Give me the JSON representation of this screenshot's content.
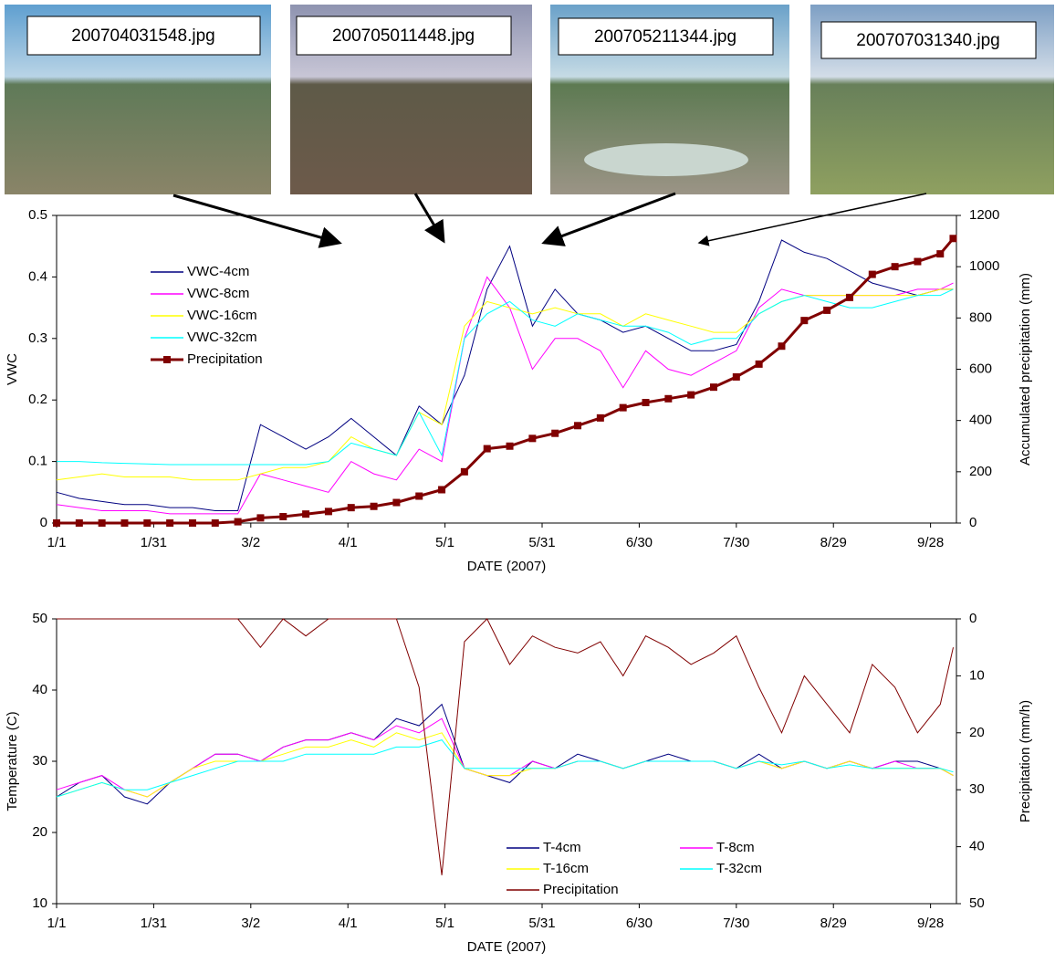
{
  "photos": [
    "200704031548.jpg",
    "200705011448.jpg",
    "200705211344.jpg",
    "200707031340.jpg"
  ],
  "chart_data": [
    {
      "type": "line",
      "ylabel": "VWC",
      "y2label": "Accumulated precipitation (mm)",
      "xlabel": "DATE (2007)",
      "x": [
        "1/1",
        "1/8",
        "1/15",
        "1/22",
        "1/29",
        "2/5",
        "2/12",
        "2/19",
        "2/26",
        "3/5",
        "3/12",
        "3/19",
        "3/26",
        "4/2",
        "4/9",
        "4/16",
        "4/23",
        "4/30",
        "5/7",
        "5/14",
        "5/21",
        "5/28",
        "6/4",
        "6/11",
        "6/18",
        "6/25",
        "7/2",
        "7/9",
        "7/16",
        "7/23",
        "7/30",
        "8/6",
        "8/13",
        "8/20",
        "8/27",
        "9/3",
        "9/10",
        "9/17",
        "9/24",
        "10/1",
        "10/5"
      ],
      "xlim": [
        "1/1",
        "10/6"
      ],
      "xticks": [
        "1/1",
        "1/31",
        "3/2",
        "4/1",
        "5/1",
        "5/31",
        "6/30",
        "7/30",
        "8/29",
        "9/28"
      ],
      "ylim": [
        0,
        0.5
      ],
      "yticks": [
        0,
        0.1,
        0.2,
        0.3,
        0.4,
        0.5
      ],
      "y2lim": [
        0,
        1200
      ],
      "y2ticks": [
        0,
        200,
        400,
        600,
        800,
        1000,
        1200
      ],
      "legend": "upper left",
      "series": [
        {
          "name": "VWC-4cm",
          "color": "#000080",
          "values": [
            0.05,
            0.04,
            0.035,
            0.03,
            0.03,
            0.025,
            0.025,
            0.02,
            0.02,
            0.16,
            0.14,
            0.12,
            0.14,
            0.17,
            0.14,
            0.11,
            0.19,
            0.16,
            0.24,
            0.38,
            0.45,
            0.32,
            0.38,
            0.34,
            0.33,
            0.31,
            0.32,
            0.3,
            0.28,
            0.28,
            0.29,
            0.36,
            0.46,
            0.44,
            0.43,
            0.41,
            0.39,
            0.38,
            0.37,
            0.38,
            0.38
          ]
        },
        {
          "name": "VWC-8cm",
          "color": "#ff00ff",
          "values": [
            0.03,
            0.025,
            0.02,
            0.02,
            0.02,
            0.015,
            0.015,
            0.015,
            0.015,
            0.08,
            0.07,
            0.06,
            0.05,
            0.1,
            0.08,
            0.07,
            0.12,
            0.1,
            0.3,
            0.4,
            0.35,
            0.25,
            0.3,
            0.3,
            0.28,
            0.22,
            0.28,
            0.25,
            0.24,
            0.26,
            0.28,
            0.35,
            0.38,
            0.37,
            0.37,
            0.37,
            0.37,
            0.37,
            0.38,
            0.38,
            0.39
          ]
        },
        {
          "name": "VWC-16cm",
          "color": "#ffff00",
          "values": [
            0.07,
            0.075,
            0.08,
            0.075,
            0.075,
            0.075,
            0.07,
            0.07,
            0.07,
            0.08,
            0.09,
            0.09,
            0.1,
            0.14,
            0.12,
            0.11,
            0.18,
            0.16,
            0.32,
            0.36,
            0.35,
            0.34,
            0.35,
            0.34,
            0.34,
            0.32,
            0.34,
            0.33,
            0.32,
            0.31,
            0.31,
            0.34,
            0.36,
            0.37,
            0.37,
            0.37,
            0.37,
            0.37,
            0.37,
            0.38,
            0.38
          ]
        },
        {
          "name": "VWC-32cm",
          "color": "#00ffff",
          "values": [
            0.1,
            0.1,
            0.098,
            0.097,
            0.096,
            0.095,
            0.095,
            0.095,
            0.095,
            0.095,
            0.095,
            0.095,
            0.1,
            0.13,
            0.12,
            0.11,
            0.18,
            0.11,
            0.3,
            0.34,
            0.36,
            0.33,
            0.32,
            0.34,
            0.33,
            0.32,
            0.32,
            0.31,
            0.29,
            0.3,
            0.3,
            0.34,
            0.36,
            0.37,
            0.36,
            0.35,
            0.35,
            0.36,
            0.37,
            0.37,
            0.38
          ]
        },
        {
          "name": "Precipitation",
          "color": "#800000",
          "axis": "y2",
          "marker": "square",
          "values": [
            0,
            0,
            0,
            0,
            0,
            0,
            0,
            0,
            5,
            20,
            25,
            35,
            45,
            60,
            65,
            80,
            105,
            130,
            200,
            290,
            300,
            330,
            350,
            380,
            410,
            450,
            470,
            485,
            500,
            530,
            570,
            620,
            690,
            790,
            830,
            880,
            970,
            1000,
            1020,
            1050,
            1110
          ]
        }
      ]
    },
    {
      "type": "line",
      "ylabel": "Temperature (C)",
      "y2label": "Precipitation (mm/h)",
      "xlabel": "DATE (2007)",
      "x": [
        "1/1",
        "1/8",
        "1/15",
        "1/22",
        "1/29",
        "2/5",
        "2/12",
        "2/19",
        "2/26",
        "3/5",
        "3/12",
        "3/19",
        "3/26",
        "4/2",
        "4/9",
        "4/16",
        "4/23",
        "4/30",
        "5/7",
        "5/14",
        "5/21",
        "5/28",
        "6/4",
        "6/11",
        "6/18",
        "6/25",
        "7/2",
        "7/9",
        "7/16",
        "7/23",
        "7/30",
        "8/6",
        "8/13",
        "8/20",
        "8/27",
        "9/3",
        "9/10",
        "9/17",
        "9/24",
        "10/1",
        "10/5"
      ],
      "xlim": [
        "1/1",
        "10/6"
      ],
      "xticks": [
        "1/1",
        "1/31",
        "3/2",
        "4/1",
        "5/1",
        "5/31",
        "6/30",
        "7/30",
        "8/29",
        "9/28"
      ],
      "ylim": [
        10,
        50
      ],
      "yticks": [
        10,
        20,
        30,
        40,
        50
      ],
      "y2lim": [
        50,
        0
      ],
      "y2ticks": [
        0,
        10,
        20,
        30,
        40,
        50
      ],
      "legend": "lower center",
      "series": [
        {
          "name": "T-4cm",
          "color": "#000080",
          "values": [
            25,
            27,
            28,
            25,
            24,
            27,
            29,
            31,
            31,
            30,
            32,
            33,
            33,
            34,
            33,
            36,
            35,
            38,
            29,
            28,
            27,
            30,
            29,
            31,
            30,
            29,
            30,
            31,
            30,
            30,
            29,
            31,
            29,
            30,
            29,
            30,
            29,
            30,
            30,
            29,
            28
          ]
        },
        {
          "name": "T-8cm",
          "color": "#ff00ff",
          "values": [
            26,
            27,
            28,
            26,
            25,
            27,
            29,
            31,
            31,
            30,
            32,
            33,
            33,
            34,
            33,
            35,
            34,
            36,
            29,
            28,
            28,
            30,
            29,
            30,
            30,
            29,
            30,
            30,
            30,
            30,
            29,
            30,
            29,
            30,
            29,
            30,
            29,
            30,
            29,
            29,
            28
          ]
        },
        {
          "name": "T-16cm",
          "color": "#ffff00",
          "values": [
            25,
            26,
            27,
            26,
            25,
            27,
            29,
            30,
            30,
            30,
            31,
            32,
            32,
            33,
            32,
            34,
            33,
            34,
            29,
            28,
            28,
            29,
            29,
            30,
            30,
            29,
            30,
            30,
            30,
            30,
            29,
            30,
            29,
            30,
            29,
            30,
            29,
            29,
            29,
            29,
            28
          ]
        },
        {
          "name": "T-32cm",
          "color": "#00ffff",
          "values": [
            25,
            26,
            27,
            26,
            26,
            27,
            28,
            29,
            30,
            30,
            30,
            31,
            31,
            31,
            31,
            32,
            32,
            33,
            29,
            29,
            29,
            29,
            29,
            30,
            30,
            29,
            30,
            30,
            30,
            30,
            29,
            30,
            29.5,
            30,
            29,
            29.5,
            29,
            29,
            29,
            29,
            28.5
          ]
        },
        {
          "name": "Precipitation",
          "color": "#800000",
          "axis": "y2",
          "values": [
            0,
            0,
            0,
            0,
            0,
            0,
            0,
            0,
            0,
            5,
            0,
            3,
            0,
            0,
            0,
            0,
            12,
            45,
            4,
            0,
            8,
            3,
            5,
            6,
            4,
            10,
            3,
            5,
            8,
            6,
            3,
            12,
            20,
            10,
            15,
            20,
            8,
            12,
            20,
            15,
            5
          ]
        }
      ]
    }
  ]
}
